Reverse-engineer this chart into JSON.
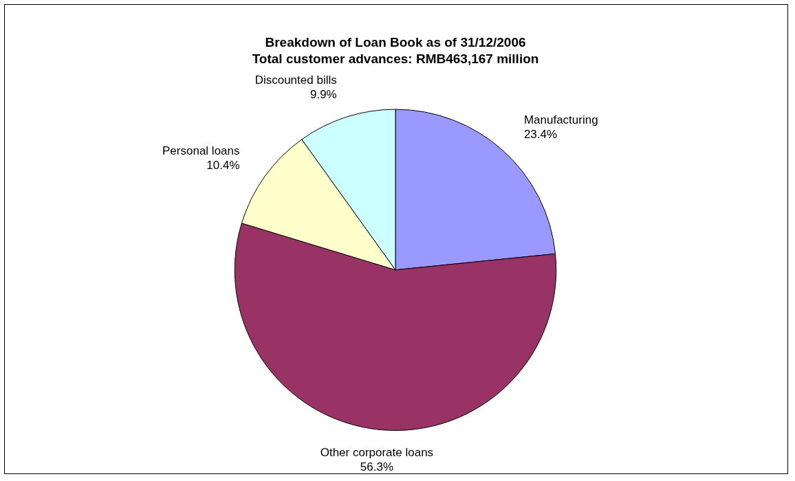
{
  "chart_data": {
    "type": "pie",
    "title": "Breakdown of Loan Book as of 31/12/2006",
    "subtitle": "Total customer advances: RMB463,167 million",
    "categories": [
      "Manufacturing",
      "Other corporate loans",
      "Personal loans",
      "Discounted bills"
    ],
    "values": [
      23.4,
      56.3,
      10.4,
      9.9
    ],
    "value_labels": [
      "23.4%",
      "56.3%",
      "10.4%",
      "9.9%"
    ],
    "colors": [
      "#9999ff",
      "#993366",
      "#ffffcc",
      "#ccffff"
    ],
    "legend": false
  }
}
